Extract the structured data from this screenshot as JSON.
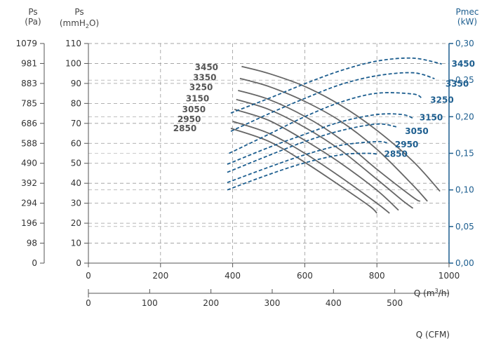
{
  "chart_data": {
    "type": "line",
    "title": "",
    "colors": {
      "pressure": "#666666",
      "power": "#1d5e8f",
      "axis_right": "#1d5e8f",
      "grid": "#999999"
    },
    "grid": true,
    "axes": {
      "left_pa": {
        "label": "Ps",
        "unit": "(Pa)",
        "ticks": [
          "0",
          "98",
          "196",
          "294",
          "392",
          "490",
          "588",
          "686",
          "785",
          "883",
          "981",
          "1079"
        ]
      },
      "left_mm": {
        "label": "Ps",
        "unit": "mmH2O",
        "unit_parts": [
          "(mmH",
          "2",
          "O)"
        ],
        "ticks": [
          "0",
          "10",
          "20",
          "30",
          "40",
          "50",
          "60",
          "70",
          "80",
          "90",
          "100",
          "110"
        ],
        "ylim": [
          0,
          110
        ]
      },
      "right": {
        "label": "Pmec",
        "unit": "(kW)",
        "ticks": [
          "0,00",
          "0,05",
          "0,10",
          "0,15",
          "0,20",
          "0,25",
          "0,30"
        ],
        "ylim": [
          0,
          0.3
        ]
      },
      "x_m3h": {
        "label_parts": [
          "Q (m",
          "3",
          "/h)"
        ],
        "ticks": [
          "0",
          "200",
          "400",
          "600",
          "800",
          "1000"
        ],
        "xlim": [
          0,
          1000
        ]
      },
      "x_cfm": {
        "label": "Q (CFM)",
        "ticks": [
          "0",
          "100",
          "200",
          "300",
          "400",
          "500"
        ],
        "xlim": [
          0,
          588.6
        ]
      }
    },
    "pressure_series": [
      {
        "name": "3450",
        "x": [
          425,
          500,
          600,
          700,
          800,
          900,
          975
        ],
        "y": [
          98.5,
          95,
          88.5,
          79,
          66.5,
          51,
          36
        ]
      },
      {
        "name": "3350",
        "x": [
          420,
          500,
          600,
          700,
          800,
          900,
          940
        ],
        "y": [
          92.5,
          88.5,
          81,
          71,
          57,
          39,
          31
        ]
      },
      {
        "name": "3250",
        "x": [
          415,
          500,
          600,
          700,
          800,
          900,
          920
        ],
        "y": [
          86.5,
          82,
          73.5,
          62,
          47,
          33,
          31
        ]
      },
      {
        "name": "3150",
        "x": [
          410,
          500,
          600,
          700,
          800,
          870,
          900
        ],
        "y": [
          82,
          77,
          68,
          56.5,
          42,
          31.5,
          27.5
        ]
      },
      {
        "name": "3050",
        "x": [
          405,
          500,
          600,
          700,
          800,
          860
        ],
        "y": [
          77,
          71.5,
          61.5,
          50,
          36.5,
          26.5
        ]
      },
      {
        "name": "2950",
        "x": [
          400,
          500,
          600,
          700,
          800,
          835
        ],
        "y": [
          71,
          65,
          55,
          43,
          30,
          25
        ]
      },
      {
        "name": "2850",
        "x": [
          395,
          500,
          600,
          700,
          780,
          800
        ],
        "y": [
          67.5,
          61,
          50.5,
          38.5,
          28.5,
          25
        ]
      }
    ],
    "power_series": [
      {
        "name": "3450",
        "x": [
          395,
          500,
          600,
          700,
          800,
          900,
          980
        ],
        "y": [
          0.205,
          0.225,
          0.245,
          0.263,
          0.276,
          0.28,
          0.272
        ]
      },
      {
        "name": "3350",
        "x": [
          395,
          500,
          600,
          700,
          800,
          900,
          960
        ],
        "y": [
          0.18,
          0.204,
          0.225,
          0.244,
          0.256,
          0.26,
          0.252
        ]
      },
      {
        "name": "3250",
        "x": [
          390,
          500,
          600,
          700,
          800,
          900,
          925
        ],
        "y": [
          0.15,
          0.176,
          0.2,
          0.22,
          0.232,
          0.231,
          0.225
        ]
      },
      {
        "name": "3150",
        "x": [
          385,
          500,
          600,
          700,
          800,
          870,
          900
        ],
        "y": [
          0.135,
          0.158,
          0.176,
          0.193,
          0.203,
          0.203,
          0.198
        ]
      },
      {
        "name": "3050",
        "x": [
          385,
          500,
          600,
          700,
          800,
          855
        ],
        "y": [
          0.124,
          0.147,
          0.166,
          0.181,
          0.19,
          0.186
        ]
      },
      {
        "name": "2950",
        "x": [
          385,
          500,
          600,
          700,
          800,
          830
        ],
        "y": [
          0.11,
          0.131,
          0.148,
          0.161,
          0.166,
          0.164
        ]
      },
      {
        "name": "2850",
        "x": [
          385,
          500,
          600,
          700,
          770,
          800
        ],
        "y": [
          0.1,
          0.121,
          0.137,
          0.148,
          0.15,
          0.149
        ]
      }
    ],
    "pressure_labels": [
      {
        "text": "3450",
        "x": 360,
        "y": 98
      },
      {
        "text": "3350",
        "x": 355,
        "y": 93
      },
      {
        "text": "3250",
        "x": 345,
        "y": 88
      },
      {
        "text": "3150",
        "x": 335,
        "y": 82.5
      },
      {
        "text": "3050",
        "x": 325,
        "y": 77
      },
      {
        "text": "2950",
        "x": 312,
        "y": 72
      },
      {
        "text": "2850",
        "x": 300,
        "y": 67.5
      }
    ],
    "power_labels": [
      {
        "text": "3450",
        "x": 1007,
        "y": 0.272
      },
      {
        "text": "3350",
        "x": 990,
        "y": 0.245
      },
      {
        "text": "3250",
        "x": 948,
        "y": 0.223
      },
      {
        "text": "3150",
        "x": 918,
        "y": 0.199
      },
      {
        "text": "3050",
        "x": 878,
        "y": 0.18
      },
      {
        "text": "2950",
        "x": 850,
        "y": 0.162
      },
      {
        "text": "2850",
        "x": 820,
        "y": 0.149
      }
    ]
  }
}
